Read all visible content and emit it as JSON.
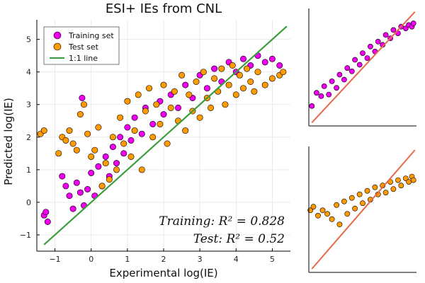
{
  "chart_data": [
    {
      "id": "main",
      "type": "scatter",
      "title": "ESI+ IEs from CNL",
      "xlabel": "Experimental log(IE)",
      "ylabel": "Predicted log(IE)",
      "xlim": [
        -1.5,
        5.5
      ],
      "ylim": [
        -1.5,
        5.6
      ],
      "xticks": [
        -1,
        0,
        1,
        2,
        3,
        4,
        5
      ],
      "yticks": [
        -1,
        0,
        1,
        2,
        3,
        4,
        5
      ],
      "xtick_labels": [
        "−1",
        "0",
        "1",
        "2",
        "3",
        "4",
        "5"
      ],
      "ytick_labels": [
        "−1",
        "0",
        "1",
        "2",
        "3",
        "4",
        "5"
      ],
      "grid": true,
      "legend": "top-left",
      "series": [
        {
          "name": "Training set",
          "color": "#ee00ee",
          "points": [
            [
              -1.3,
              -0.4
            ],
            [
              -1.25,
              -0.3
            ],
            [
              -1.2,
              -0.6
            ],
            [
              -0.8,
              0.8
            ],
            [
              -0.7,
              0.5
            ],
            [
              -0.6,
              0.2
            ],
            [
              -0.5,
              -0.2
            ],
            [
              -0.4,
              0.6
            ],
            [
              -0.3,
              0.3
            ],
            [
              -0.25,
              3.2
            ],
            [
              -0.2,
              -0.1
            ],
            [
              -0.1,
              0.4
            ],
            [
              0.0,
              0.9
            ],
            [
              0.1,
              0.2
            ],
            [
              0.2,
              1.1
            ],
            [
              0.3,
              0.5
            ],
            [
              0.4,
              1.4
            ],
            [
              0.5,
              0.8
            ],
            [
              0.6,
              1.7
            ],
            [
              0.7,
              1.2
            ],
            [
              0.8,
              2.0
            ],
            [
              0.9,
              1.5
            ],
            [
              1.0,
              2.3
            ],
            [
              1.1,
              1.9
            ],
            [
              1.2,
              2.6
            ],
            [
              1.4,
              2.1
            ],
            [
              1.5,
              2.9
            ],
            [
              1.7,
              2.4
            ],
            [
              1.9,
              3.1
            ],
            [
              2.0,
              2.7
            ],
            [
              2.2,
              3.3
            ],
            [
              2.4,
              2.9
            ],
            [
              2.6,
              3.6
            ],
            [
              2.8,
              3.2
            ],
            [
              3.0,
              3.9
            ],
            [
              3.2,
              3.5
            ],
            [
              3.4,
              4.1
            ],
            [
              3.6,
              3.7
            ],
            [
              3.8,
              4.3
            ],
            [
              4.0,
              4.0
            ],
            [
              4.2,
              4.4
            ],
            [
              4.4,
              4.2
            ],
            [
              4.6,
              4.5
            ],
            [
              4.8,
              4.3
            ],
            [
              5.0,
              4.4
            ],
            [
              5.2,
              4.2
            ]
          ]
        },
        {
          "name": "Test set",
          "color": "#ff9a00",
          "points": [
            [
              -1.4,
              2.1
            ],
            [
              -1.3,
              2.2
            ],
            [
              -0.9,
              1.5
            ],
            [
              -0.8,
              2.0
            ],
            [
              -0.7,
              1.9
            ],
            [
              -0.6,
              2.2
            ],
            [
              -0.5,
              1.8
            ],
            [
              -0.4,
              1.6
            ],
            [
              -0.3,
              2.7
            ],
            [
              -0.2,
              3.0
            ],
            [
              -0.1,
              2.1
            ],
            [
              0.0,
              1.4
            ],
            [
              0.1,
              1.6
            ],
            [
              0.2,
              2.3
            ],
            [
              0.3,
              0.5
            ],
            [
              0.4,
              1.2
            ],
            [
              0.5,
              0.7
            ],
            [
              0.6,
              2.0
            ],
            [
              0.7,
              1.0
            ],
            [
              0.8,
              2.6
            ],
            [
              0.9,
              1.8
            ],
            [
              1.0,
              3.1
            ],
            [
              1.1,
              1.4
            ],
            [
              1.2,
              2.2
            ],
            [
              1.3,
              3.3
            ],
            [
              1.4,
              1.0
            ],
            [
              1.5,
              2.8
            ],
            [
              1.6,
              3.5
            ],
            [
              1.7,
              2.0
            ],
            [
              1.8,
              3.0
            ],
            [
              1.9,
              2.4
            ],
            [
              2.0,
              3.6
            ],
            [
              2.1,
              1.8
            ],
            [
              2.2,
              2.9
            ],
            [
              2.3,
              3.4
            ],
            [
              2.4,
              2.5
            ],
            [
              2.5,
              3.9
            ],
            [
              2.6,
              2.2
            ],
            [
              2.7,
              3.3
            ],
            [
              2.8,
              2.8
            ],
            [
              2.9,
              3.7
            ],
            [
              3.0,
              2.6
            ],
            [
              3.1,
              4.0
            ],
            [
              3.2,
              3.2
            ],
            [
              3.3,
              2.9
            ],
            [
              3.4,
              3.8
            ],
            [
              3.5,
              3.4
            ],
            [
              3.6,
              4.1
            ],
            [
              3.7,
              3.0
            ],
            [
              3.8,
              3.6
            ],
            [
              3.9,
              4.2
            ],
            [
              4.0,
              3.3
            ],
            [
              4.1,
              3.9
            ],
            [
              4.2,
              3.5
            ],
            [
              4.3,
              4.1
            ],
            [
              4.4,
              3.7
            ],
            [
              4.5,
              3.4
            ],
            [
              4.6,
              4.0
            ],
            [
              4.8,
              3.6
            ],
            [
              5.0,
              3.8
            ],
            [
              5.2,
              3.9
            ],
            [
              5.3,
              4.0
            ]
          ]
        }
      ],
      "line": {
        "name": "1:1 line",
        "color": "#3a9e3a",
        "from": [
          -1.3,
          -1.3
        ],
        "to": [
          5.4,
          5.4
        ]
      },
      "annotations": [
        "Training: R² = 0.828",
        "Test: R² = 0.52"
      ]
    },
    {
      "id": "inset-train",
      "type": "scatter",
      "xlim": [
        -1.5,
        5.5
      ],
      "ylim": [
        -1.5,
        5.6
      ],
      "series": [
        {
          "color": "#ee00ee",
          "points": [
            [
              -1.3,
              -0.3
            ],
            [
              -1.0,
              0.5
            ],
            [
              -0.7,
              0.3
            ],
            [
              -0.5,
              0.9
            ],
            [
              -0.2,
              0.4
            ],
            [
              0.0,
              1.2
            ],
            [
              0.3,
              0.8
            ],
            [
              0.5,
              1.6
            ],
            [
              0.8,
              1.3
            ],
            [
              1.0,
              2.0
            ],
            [
              1.3,
              1.8
            ],
            [
              1.5,
              2.5
            ],
            [
              1.8,
              2.2
            ],
            [
              2.0,
              2.9
            ],
            [
              2.3,
              2.6
            ],
            [
              2.5,
              3.3
            ],
            [
              2.8,
              3.0
            ],
            [
              3.0,
              3.6
            ],
            [
              3.3,
              3.4
            ],
            [
              3.5,
              4.0
            ],
            [
              3.8,
              3.8
            ],
            [
              4.0,
              4.3
            ],
            [
              4.3,
              4.1
            ],
            [
              4.5,
              4.5
            ],
            [
              4.8,
              4.4
            ],
            [
              5.0,
              4.6
            ],
            [
              5.2,
              4.5
            ],
            [
              5.3,
              4.7
            ]
          ]
        }
      ],
      "line": {
        "color": "#e8694a",
        "from": [
          -1.3,
          -1.3
        ],
        "to": [
          5.4,
          5.4
        ]
      }
    },
    {
      "id": "inset-test",
      "type": "scatter",
      "xlim": [
        -1.5,
        5.5
      ],
      "ylim": [
        -1.5,
        5.6
      ],
      "series": [
        {
          "color": "#ff9a00",
          "points": [
            [
              -1.4,
              2.0
            ],
            [
              -1.2,
              2.2
            ],
            [
              -0.9,
              1.7
            ],
            [
              -0.6,
              2.0
            ],
            [
              -0.3,
              1.8
            ],
            [
              0.0,
              1.5
            ],
            [
              0.3,
              2.3
            ],
            [
              0.5,
              1.2
            ],
            [
              0.8,
              2.5
            ],
            [
              1.0,
              1.8
            ],
            [
              1.3,
              2.7
            ],
            [
              1.5,
              2.1
            ],
            [
              1.8,
              2.9
            ],
            [
              2.0,
              2.4
            ],
            [
              2.3,
              3.1
            ],
            [
              2.5,
              2.6
            ],
            [
              2.8,
              3.3
            ],
            [
              3.0,
              2.9
            ],
            [
              3.3,
              3.4
            ],
            [
              3.5,
              3.0
            ],
            [
              3.8,
              3.6
            ],
            [
              4.0,
              3.2
            ],
            [
              4.3,
              3.7
            ],
            [
              4.5,
              3.4
            ],
            [
              4.8,
              3.8
            ],
            [
              5.0,
              3.6
            ],
            [
              5.2,
              3.9
            ],
            [
              5.3,
              3.7
            ]
          ]
        }
      ],
      "line": {
        "color": "#e8694a",
        "from": [
          -1.3,
          -1.3
        ],
        "to": [
          5.4,
          5.4
        ]
      }
    }
  ]
}
